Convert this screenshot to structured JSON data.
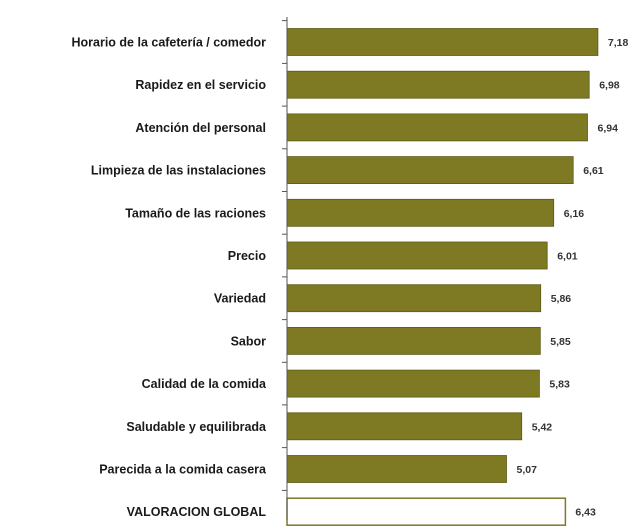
{
  "chart_data": {
    "type": "bar",
    "orientation": "horizontal",
    "categories": [
      "Horario de la cafetería / comedor",
      "Rapidez en el servicio",
      "Atención del personal",
      "Limpieza de las instalaciones",
      "Tamaño de las raciones",
      "Precio",
      "Variedad",
      "Sabor",
      "Calidad de la comida",
      "Saludable y equilibrada",
      "Parecida a la comida casera",
      "VALORACION GLOBAL"
    ],
    "values": [
      7.18,
      6.98,
      6.94,
      6.61,
      6.16,
      6.01,
      5.86,
      5.85,
      5.83,
      5.42,
      5.07,
      6.43
    ],
    "value_labels": [
      "7,18",
      "6,98",
      "6,94",
      "6,61",
      "6,16",
      "6,01",
      "5,86",
      "5,85",
      "5,83",
      "5,42",
      "5,07",
      "6,43"
    ],
    "highlight_index": 11,
    "xlim": [
      0,
      7.5
    ],
    "title": "",
    "xlabel": "",
    "ylabel": "",
    "grid": false,
    "colors": {
      "bar_fill": "#7d7a23",
      "bar_stroke": "#5c5a14",
      "highlight_fill": "#ffffff",
      "highlight_stroke": "#7d7a23",
      "axis": "#555555"
    }
  }
}
